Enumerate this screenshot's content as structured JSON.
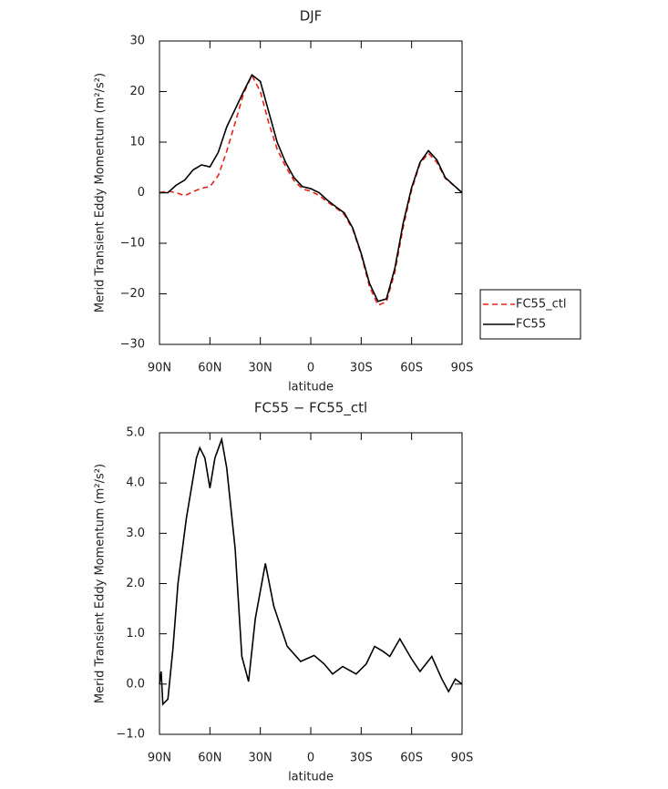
{
  "chart_data": [
    {
      "type": "line",
      "title": "DJF",
      "x_label": "latitude",
      "y_label": "Merid Transient Eddy Momentum (m²/s²)",
      "xlim": [
        90,
        -90
      ],
      "xticks": [
        {
          "value": 90,
          "label": "90N"
        },
        {
          "value": 60,
          "label": "60N"
        },
        {
          "value": 30,
          "label": "30N"
        },
        0,
        {
          "value": -30,
          "label": "30S"
        },
        {
          "value": -60,
          "label": "60S"
        },
        {
          "value": -90,
          "label": "90S"
        }
      ],
      "ylim": [
        -30,
        30
      ],
      "yticks": [
        {
          "value": -30,
          "label": "−30"
        },
        {
          "value": -20,
          "label": "−20"
        },
        {
          "value": -10,
          "label": "−10"
        },
        0,
        10,
        20,
        30
      ],
      "legend": "outside-right",
      "x": [
        90,
        85,
        80,
        75,
        70,
        65,
        60,
        55,
        50,
        45,
        40,
        35,
        30,
        25,
        20,
        15,
        10,
        5,
        0,
        -5,
        -10,
        -15,
        -20,
        -25,
        -30,
        -35,
        -40,
        -45,
        -50,
        -55,
        -60,
        -65,
        -70,
        -75,
        -80,
        -85,
        -90
      ],
      "series": [
        {
          "name": "FC55_ctl",
          "color": "#e8221b",
          "dash": true,
          "values": [
            0,
            0.3,
            0,
            -0.6,
            0.2,
            0.9,
            1.2,
            3.4,
            8.2,
            13.8,
            19.6,
            23.2,
            20,
            13.8,
            8.6,
            5.2,
            2.4,
            0.75,
            0.3,
            -0.55,
            -1.85,
            -3,
            -4.35,
            -7.25,
            -12.25,
            -18.6,
            -22.25,
            -21.6,
            -15.75,
            -6.8,
            0.55,
            5.75,
            7.8,
            6,
            2.85,
            1.45,
            0
          ]
        },
        {
          "name": "FC55",
          "color": "#000000",
          "dash": false,
          "values": [
            0,
            0,
            1.5,
            2.5,
            4.5,
            5.5,
            5.1,
            8,
            13,
            16.5,
            20,
            23.3,
            22,
            16,
            10,
            6,
            3,
            1.2,
            0.8,
            0,
            -1.5,
            -2.8,
            -4,
            -7,
            -12,
            -18,
            -21.5,
            -21,
            -15,
            -6,
            1,
            6,
            8.3,
            6.5,
            3,
            1.5,
            0
          ]
        }
      ]
    },
    {
      "type": "line",
      "title": "FC55 − FC55_ctl",
      "x_label": "latitude",
      "y_label": "Merid Transient Eddy Momentum (m²/s²)",
      "xlim": [
        90,
        -90
      ],
      "xticks": [
        {
          "value": 90,
          "label": "90N"
        },
        {
          "value": 60,
          "label": "60N"
        },
        {
          "value": 30,
          "label": "30N"
        },
        0,
        {
          "value": -30,
          "label": "30S"
        },
        {
          "value": -60,
          "label": "60S"
        },
        {
          "value": -90,
          "label": "90S"
        }
      ],
      "ylim": [
        -1,
        5
      ],
      "yticks": [
        {
          "value": -1,
          "label": "−1.0"
        },
        {
          "value": 0,
          "label": "0.0"
        },
        {
          "value": 1,
          "label": "1.0"
        },
        {
          "value": 2,
          "label": "2.0"
        },
        {
          "value": 3,
          "label": "3.0"
        },
        {
          "value": 4,
          "label": "4.0"
        },
        {
          "value": 5,
          "label": "5.0"
        }
      ],
      "x": [
        90,
        89,
        88,
        85,
        82,
        79,
        74,
        68,
        66,
        63,
        60,
        57,
        53,
        50,
        45,
        41,
        37,
        33,
        27,
        22,
        14,
        6,
        -2,
        -8,
        -13,
        -19,
        -27,
        -33,
        -38,
        -43,
        -47,
        -53,
        -60,
        -65,
        -72,
        -78,
        -82,
        -86,
        -90
      ],
      "series": [
        {
          "name": "FC55",
          "color": "#000000",
          "dash": false,
          "values": [
            0,
            0.25,
            -0.4,
            -0.3,
            0.7,
            2,
            3.3,
            4.5,
            4.7,
            4.5,
            3.9,
            4.5,
            4.87,
            4.3,
            2.7,
            0.55,
            0.05,
            1.3,
            2.4,
            1.55,
            0.75,
            0.45,
            0.57,
            0.4,
            0.2,
            0.35,
            0.2,
            0.4,
            0.75,
            0.65,
            0.55,
            0.9,
            0.5,
            0.25,
            0.55,
            0.1,
            -0.15,
            0.1,
            0
          ]
        }
      ]
    }
  ]
}
